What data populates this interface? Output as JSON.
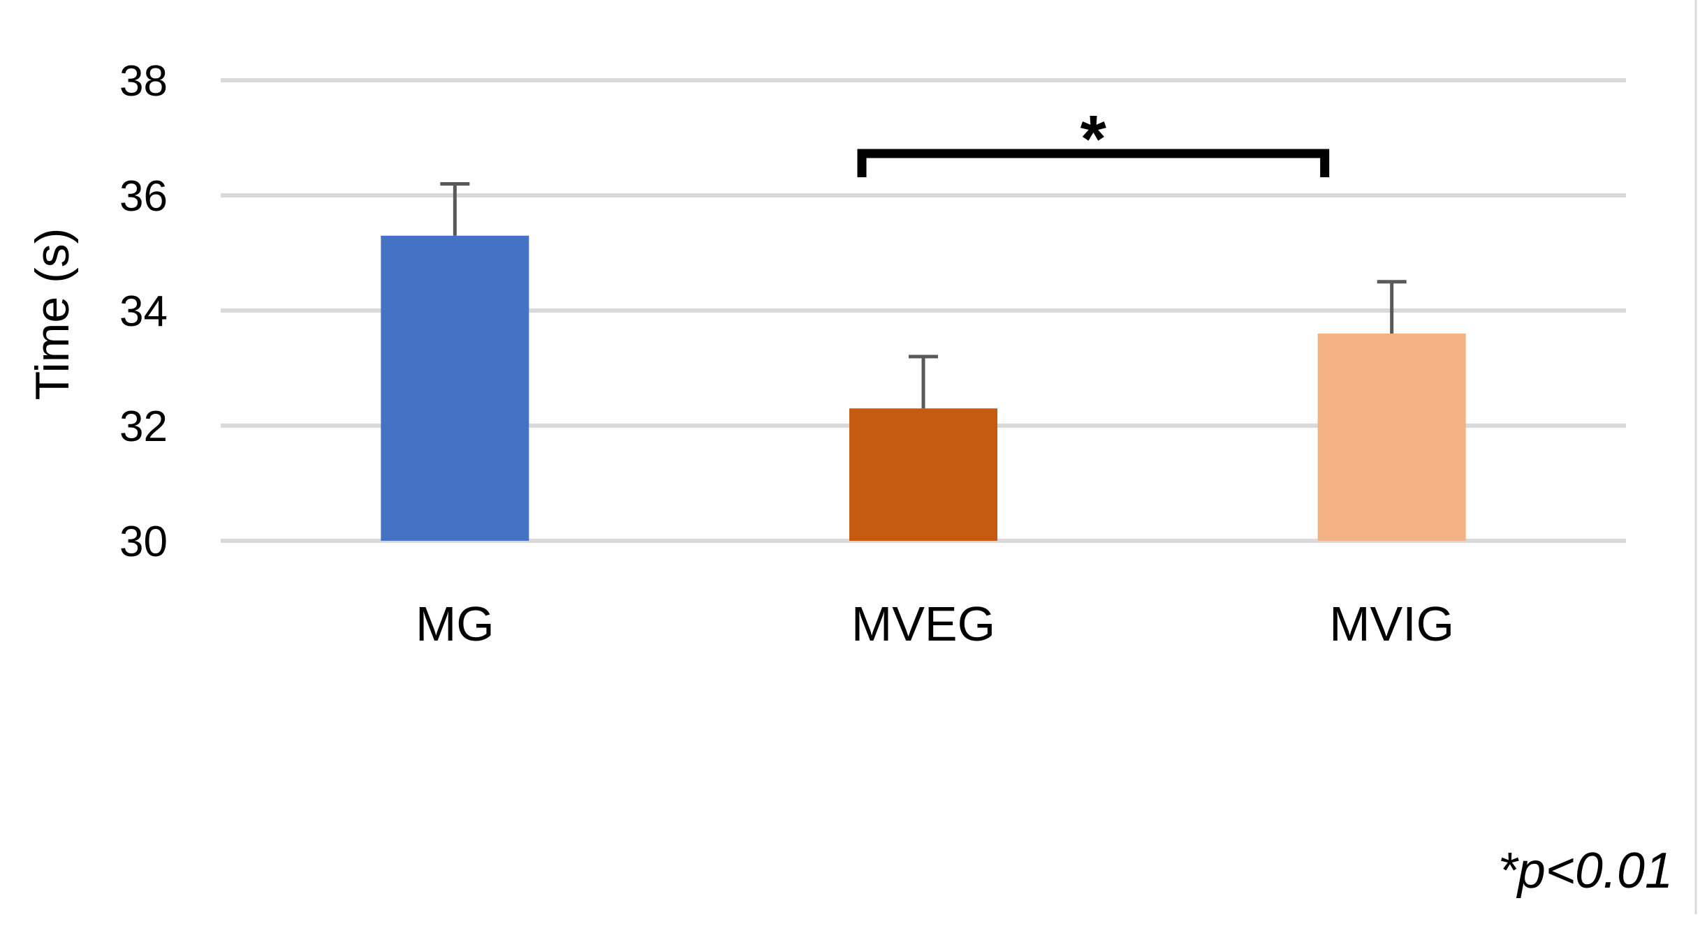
{
  "chart_data": {
    "type": "bar",
    "title": "",
    "xlabel": "",
    "ylabel": "Time (s)",
    "ylim": [
      30,
      38
    ],
    "yticks": [
      30,
      32,
      34,
      36,
      38
    ],
    "grid": true,
    "categories": [
      "MG",
      "MVEG",
      "MVIG"
    ],
    "values": [
      35.3,
      32.3,
      33.6
    ],
    "errors": [
      0.9,
      0.9,
      0.9
    ],
    "colors": [
      "#4472C4",
      "#C55A11",
      "#F4B183"
    ],
    "annotations": {
      "significance": {
        "between": [
          "MVEG",
          "MVIG"
        ],
        "label": "*"
      },
      "footnote": "*p<0.01"
    }
  }
}
